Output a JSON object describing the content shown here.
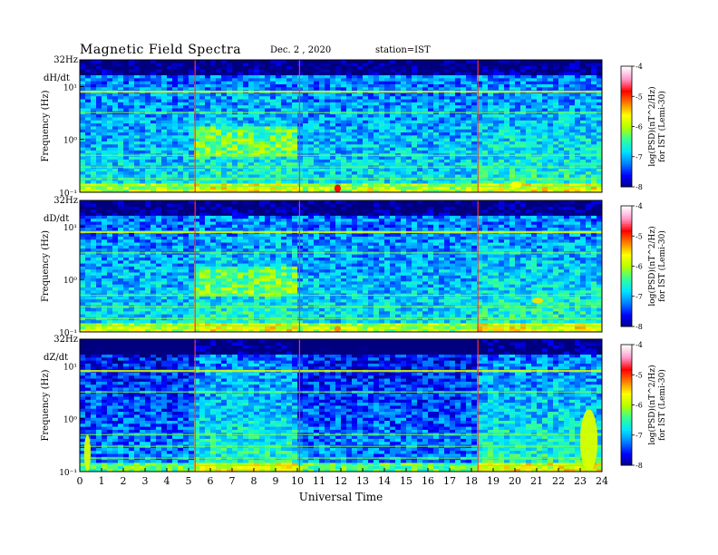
{
  "header": {
    "title": "Magnetic  Field  Spectra",
    "date": "Dec. 2  , 2020",
    "station": "station=IST"
  },
  "colors": {
    "colormap": [
      "#00007f",
      "#0000ff",
      "#0080ff",
      "#00e5ff",
      "#33ff99",
      "#b3ff00",
      "#ffff00",
      "#ff8000",
      "#ff0000",
      "#ff99cc",
      "#ffffff"
    ],
    "event_line": "#ff3333",
    "frame": "#000000"
  },
  "chart_data": [
    {
      "type": "heatmap",
      "panel_label": "dH/dt",
      "top_label": "32Hz",
      "ylabel": "Frequency  (Hz)",
      "xlim": [
        0,
        24
      ],
      "ylim": [
        0.1,
        32
      ],
      "yscale": "log",
      "yticks": [
        {
          "value": 10,
          "label": "10¹"
        },
        {
          "value": 1,
          "label": "10⁰"
        },
        {
          "value": 0.1,
          "label": "10⁻¹"
        }
      ],
      "colorbar": {
        "label": "log(PSD)(nT^2/Hz)",
        "sublabel": "for IST (Lemi-30)",
        "range": [
          -8,
          -4
        ],
        "ticks": [
          -4,
          -5,
          -6,
          -7,
          -8
        ]
      },
      "event_hours": [
        5.3,
        10.1,
        18.3
      ],
      "features": [
        {
          "x": [
            11.7,
            12.0
          ],
          "y": [
            0.1,
            0.14
          ],
          "level": -4.8
        },
        {
          "x": [
            13.2,
            13.5
          ],
          "y": [
            0.1,
            0.12
          ],
          "level": -5.4
        },
        {
          "x": [
            19.8,
            20.3
          ],
          "y": [
            0.12,
            0.16
          ],
          "level": -5.6
        }
      ]
    },
    {
      "type": "heatmap",
      "panel_label": "dD/dt",
      "top_label": "32Hz",
      "ylabel": "Frequency  (Hz)",
      "xlim": [
        0,
        24
      ],
      "ylim": [
        0.1,
        32
      ],
      "yscale": "log",
      "yticks": [
        {
          "value": 10,
          "label": "10¹"
        },
        {
          "value": 1,
          "label": "10⁰"
        },
        {
          "value": 0.1,
          "label": "10⁻¹"
        }
      ],
      "colorbar": {
        "label": "log(PSD)(nT^2/Hz)",
        "sublabel": "for IST (Lemi-30)",
        "range": [
          -8,
          -4
        ],
        "ticks": [
          -4,
          -5,
          -6,
          -7,
          -8
        ]
      },
      "event_hours": [
        5.3,
        10.1,
        18.3
      ],
      "features": [
        {
          "x": [
            11.7,
            12.0
          ],
          "y": [
            0.1,
            0.13
          ],
          "level": -5.2
        },
        {
          "x": [
            13.2,
            13.5
          ],
          "y": [
            0.1,
            0.12
          ],
          "level": -5.6
        },
        {
          "x": [
            20.8,
            21.3
          ],
          "y": [
            0.35,
            0.45
          ],
          "level": -5.5
        }
      ]
    },
    {
      "type": "heatmap",
      "panel_label": "dZ/dt",
      "top_label": "32Hz",
      "ylabel": "Frequency  (Hz)",
      "xlim": [
        0,
        24
      ],
      "ylim": [
        0.1,
        32
      ],
      "yscale": "log",
      "yticks": [
        {
          "value": 10,
          "label": "10¹"
        },
        {
          "value": 1,
          "label": "10⁰"
        },
        {
          "value": 0.1,
          "label": "10⁻¹"
        }
      ],
      "colorbar": {
        "label": "log(PSD)(nT^2/Hz)",
        "sublabel": "for IST (Lemi-30)",
        "range": [
          -8,
          -4
        ],
        "ticks": [
          -4,
          -5,
          -6,
          -7,
          -8
        ]
      },
      "event_hours": [
        5.3,
        10.1,
        18.3
      ],
      "features": [
        {
          "x": [
            23.0,
            23.8
          ],
          "y": [
            0.1,
            1.5
          ],
          "level": -5.8
        },
        {
          "x": [
            0.2,
            0.5
          ],
          "y": [
            0.1,
            0.5
          ],
          "level": -5.8
        }
      ]
    }
  ],
  "xaxis": {
    "label": "Universal Time",
    "ticks": [
      0,
      1,
      2,
      3,
      4,
      5,
      6,
      7,
      8,
      9,
      10,
      11,
      12,
      13,
      14,
      15,
      16,
      17,
      18,
      19,
      20,
      21,
      22,
      23,
      24
    ]
  }
}
